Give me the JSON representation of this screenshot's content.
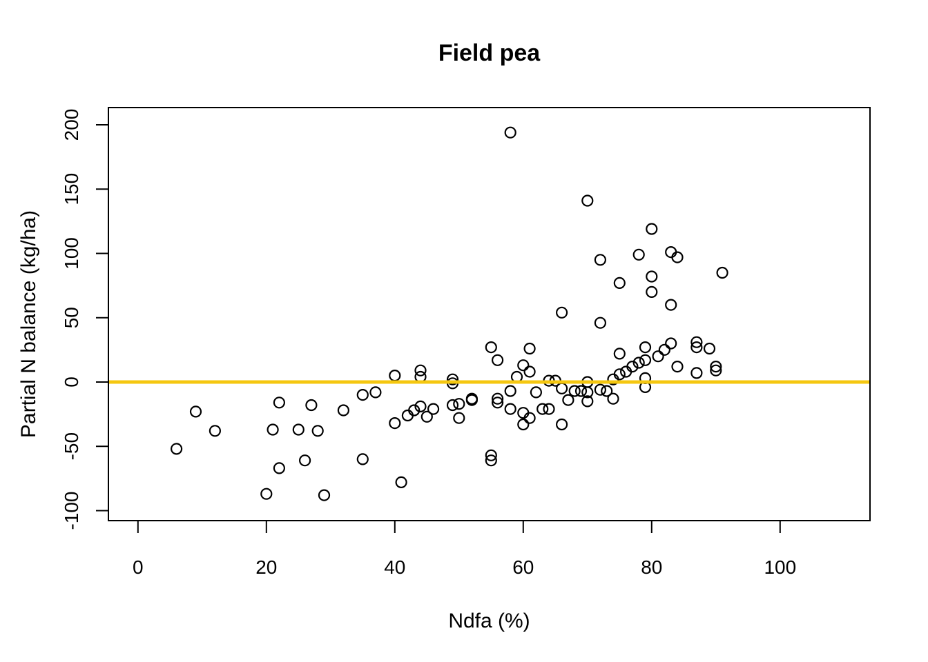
{
  "figure": {
    "title": "Field pea",
    "xlabel": "Ndfa (%)",
    "ylabel": "Partial N balance (kg/ha)"
  },
  "chart_data": {
    "type": "scatter",
    "title": "Field pea",
    "xlabel": "Ndfa (%)",
    "ylabel": "Partial N balance (kg/ha)",
    "xlim": [
      -4.6,
      114.0
    ],
    "ylim": [
      -107.8,
      213.4
    ],
    "x_ticks": [
      0,
      20,
      40,
      60,
      80,
      100
    ],
    "y_ticks": [
      -100,
      -50,
      0,
      50,
      100,
      150,
      200
    ],
    "grid": false,
    "legend": null,
    "marker": "open-circle",
    "marker_color": "#000000",
    "reference_line": {
      "orientation": "horizontal",
      "y": 0,
      "color": "#F5C710",
      "width": 5
    },
    "points": [
      [
        6,
        -52
      ],
      [
        9,
        -23
      ],
      [
        12,
        -38
      ],
      [
        20,
        -87
      ],
      [
        21,
        -37
      ],
      [
        22,
        -16
      ],
      [
        22,
        -67
      ],
      [
        25,
        -37
      ],
      [
        26,
        -61
      ],
      [
        27,
        -18
      ],
      [
        28,
        -38
      ],
      [
        29,
        -88
      ],
      [
        32,
        -22
      ],
      [
        35,
        -60
      ],
      [
        35,
        -10
      ],
      [
        37,
        -8
      ],
      [
        40,
        5
      ],
      [
        40,
        -32
      ],
      [
        41,
        -78
      ],
      [
        42,
        -26
      ],
      [
        43,
        -22
      ],
      [
        44,
        -19
      ],
      [
        45,
        -27
      ],
      [
        46,
        -21
      ],
      [
        44,
        9
      ],
      [
        44,
        4
      ],
      [
        49,
        2
      ],
      [
        49,
        -1
      ],
      [
        49,
        -18
      ],
      [
        50,
        -17
      ],
      [
        50,
        -28
      ],
      [
        52,
        -14
      ],
      [
        52,
        -13
      ],
      [
        55,
        27
      ],
      [
        55,
        -57
      ],
      [
        55,
        -61
      ],
      [
        56,
        17
      ],
      [
        56,
        -13
      ],
      [
        56,
        -16
      ],
      [
        58,
        194
      ],
      [
        58,
        -7
      ],
      [
        58,
        -21
      ],
      [
        59,
        4
      ],
      [
        60,
        13
      ],
      [
        60,
        -24
      ],
      [
        60,
        -33
      ],
      [
        61,
        26
      ],
      [
        61,
        8
      ],
      [
        61,
        -28
      ],
      [
        62,
        -8
      ],
      [
        63,
        -21
      ],
      [
        64,
        -21
      ],
      [
        64,
        1
      ],
      [
        65,
        1
      ],
      [
        66,
        -5
      ],
      [
        66,
        54
      ],
      [
        66,
        -33
      ],
      [
        67,
        -14
      ],
      [
        68,
        -7
      ],
      [
        69,
        -7
      ],
      [
        70,
        -8
      ],
      [
        70,
        -15
      ],
      [
        70,
        0
      ],
      [
        70,
        141
      ],
      [
        72,
        -6
      ],
      [
        73,
        -7
      ],
      [
        72,
        46
      ],
      [
        72,
        95
      ],
      [
        74,
        2
      ],
      [
        74,
        -13
      ],
      [
        75,
        6
      ],
      [
        76,
        8
      ],
      [
        77,
        12
      ],
      [
        78,
        15
      ],
      [
        79,
        17
      ],
      [
        75,
        22
      ],
      [
        75,
        77
      ],
      [
        78,
        99
      ],
      [
        79,
        27
      ],
      [
        79,
        3
      ],
      [
        79,
        -4
      ],
      [
        80,
        119
      ],
      [
        80,
        82
      ],
      [
        80,
        70
      ],
      [
        81,
        20
      ],
      [
        82,
        25
      ],
      [
        83,
        30
      ],
      [
        83,
        101
      ],
      [
        83,
        60
      ],
      [
        84,
        97
      ],
      [
        84,
        12
      ],
      [
        87,
        31
      ],
      [
        87,
        27
      ],
      [
        87,
        7
      ],
      [
        89,
        26
      ],
      [
        90,
        12
      ],
      [
        90,
        9
      ],
      [
        91,
        85
      ]
    ]
  }
}
